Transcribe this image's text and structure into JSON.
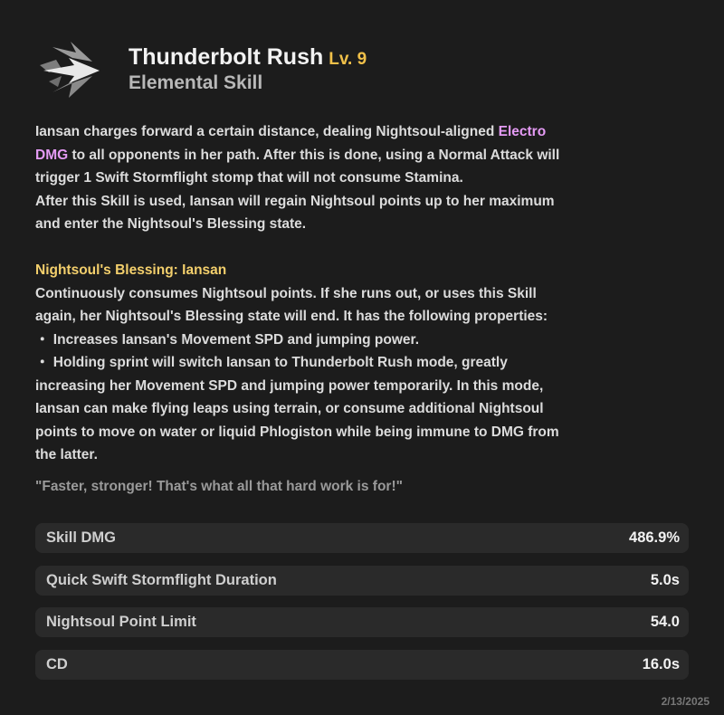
{
  "skill": {
    "icon": "electro-lightning-arrow-icon",
    "name": "Thunderbolt Rush",
    "level": "Lv. 9",
    "type": "Elemental Skill"
  },
  "description": {
    "lines_1": [
      "Iansan charges forward a certain distance, dealing Nightsoul-aligned ",
      "Electro",
      "DMG",
      " to all opponents in her path. After this is done, using a Normal Attack will",
      "trigger 1 Swift Stormflight stomp that will not consume Stamina.",
      "After this Skill is used, Iansan will regain Nightsoul points up to her maximum",
      "and enter the Nightsoul's Blessing state."
    ],
    "blessing_title": "Nightsoul's Blessing: Iansan",
    "lines_2": [
      "Continuously consumes Nightsoul points. If she runs out, or uses this Skill",
      "again, her Nightsoul's Blessing state will end. It has the following properties:",
      "・ Increases Iansan's Movement SPD and jumping power.",
      "・ Holding sprint will switch Iansan to Thunderbolt Rush mode, greatly",
      "increasing her Movement SPD and jumping power temporarily. In this mode,",
      "Iansan can make flying leaps using terrain, or consume additional Nightsoul",
      "points to move on water or liquid Phlogiston while being immune to DMG from",
      "the latter."
    ],
    "quote": "\"Faster, stronger! That's what all that hard work is for!\""
  },
  "stats": [
    {
      "label": "Skill DMG",
      "value": "486.9%"
    },
    {
      "label": "Quick Swift Stormflight Duration",
      "value": "5.0s"
    },
    {
      "label": "Nightsoul Point Limit",
      "value": "54.0"
    },
    {
      "label": "CD",
      "value": "16.0s"
    }
  ],
  "date": "2/13/2025",
  "colors": {
    "background": "#1c1c1c",
    "row": "#2a2a2a",
    "level": "#f0c049",
    "electro": "#e59bf5",
    "blessing": "#f3cf6c"
  }
}
